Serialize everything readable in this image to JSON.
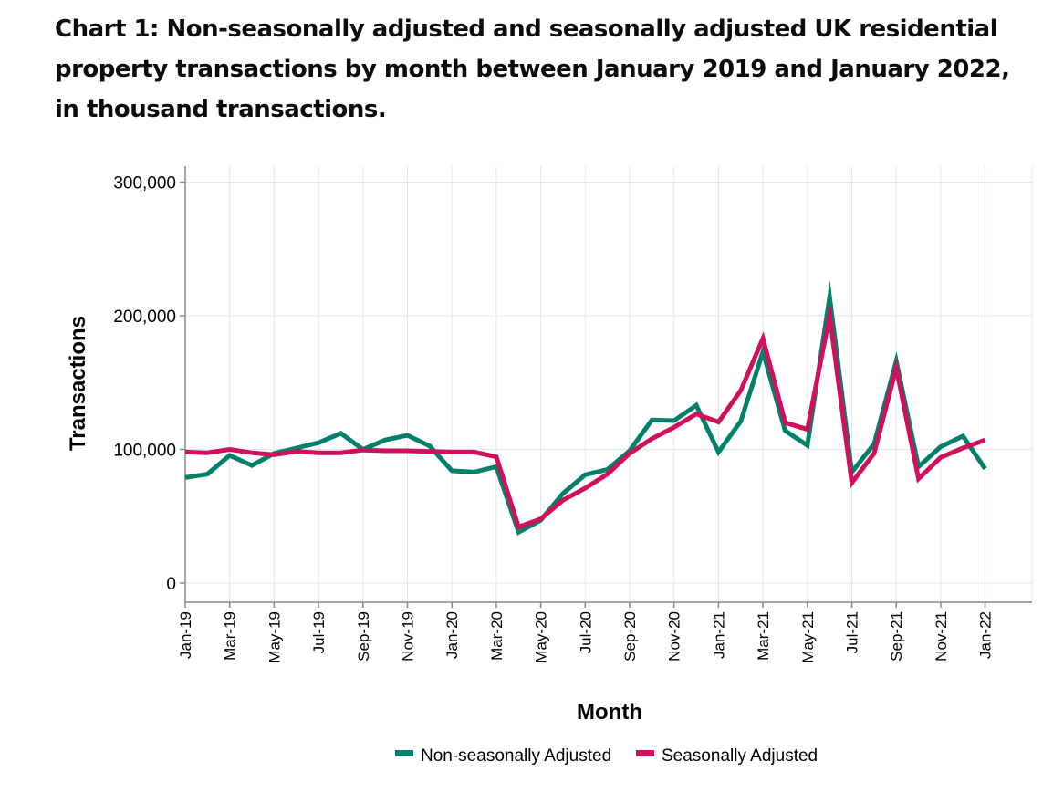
{
  "title": "Chart 1: Non-seasonally adjusted and seasonally adjusted UK residential property transactions by month between January 2019 and January 2022, in thousand transactions.",
  "chart_data": {
    "type": "line",
    "xlabel": "Month",
    "ylabel": "Transactions",
    "ylim": [
      -5000,
      310000
    ],
    "yticks": [
      0,
      100000,
      200000,
      300000
    ],
    "ytick_labels": [
      "0",
      "100,000",
      "200,000",
      "300,000"
    ],
    "grid": true,
    "legend_position": "bottom-center",
    "categories": [
      "Jan-19",
      "Feb-19",
      "Mar-19",
      "Apr-19",
      "May-19",
      "Jun-19",
      "Jul-19",
      "Aug-19",
      "Sep-19",
      "Oct-19",
      "Nov-19",
      "Dec-19",
      "Jan-20",
      "Feb-20",
      "Mar-20",
      "Apr-20",
      "May-20",
      "Jun-20",
      "Jul-20",
      "Aug-20",
      "Sep-20",
      "Oct-20",
      "Nov-20",
      "Dec-20",
      "Jan-21",
      "Feb-21",
      "Mar-21",
      "Apr-21",
      "May-21",
      "Jun-21",
      "Jul-21",
      "Aug-21",
      "Sep-21",
      "Oct-21",
      "Nov-21",
      "Dec-21",
      "Jan-22"
    ],
    "tick_labels": [
      "Jan-19",
      "Mar-19",
      "May-19",
      "Jul-19",
      "Sep-19",
      "Nov-19",
      "Jan-20",
      "Mar-20",
      "May-20",
      "Jul-20",
      "Sep-20",
      "Nov-20",
      "Jan-21",
      "Mar-21",
      "May-21",
      "Jul-21",
      "Sep-21",
      "Nov-21",
      "Jan-22"
    ],
    "series": [
      {
        "name": "Non-seasonally Adjusted",
        "color": "#00806a",
        "values": [
          79000,
          81500,
          95500,
          88000,
          97000,
          101000,
          105000,
          112000,
          100000,
          107000,
          110500,
          102500,
          84000,
          83000,
          87000,
          38000,
          47000,
          67000,
          81000,
          85000,
          99000,
          122000,
          121500,
          133000,
          98000,
          121000,
          173000,
          114000,
          103000,
          214000,
          83000,
          104000,
          166000,
          87000,
          102000,
          110000,
          85500
        ]
      },
      {
        "name": "Seasonally Adjusted",
        "color": "#d0105c",
        "values": [
          98000,
          97500,
          100000,
          97500,
          96000,
          98500,
          97500,
          97500,
          99500,
          99000,
          99000,
          98500,
          98000,
          98000,
          94500,
          42000,
          48000,
          62000,
          71000,
          81500,
          97000,
          108000,
          116500,
          126500,
          120500,
          144000,
          183000,
          120000,
          115000,
          200000,
          75000,
          97000,
          161000,
          78000,
          94000,
          101000,
          107000
        ]
      }
    ]
  }
}
